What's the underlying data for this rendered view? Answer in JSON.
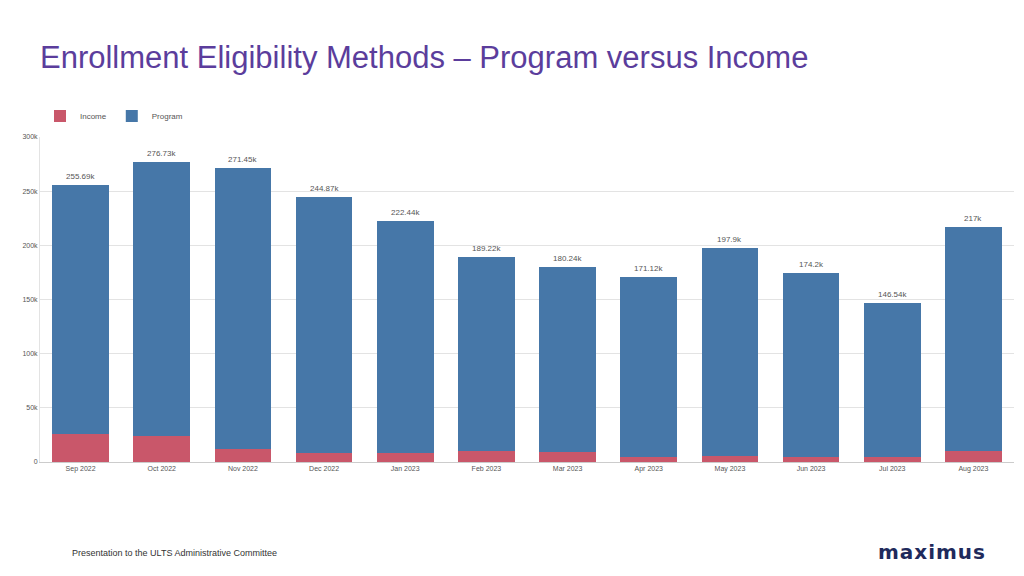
{
  "chart_data": {
    "type": "bar",
    "title": "Enrollment Eligibility Methods – Program versus Income",
    "categories": [
      "Sep 2022",
      "Oct 2022",
      "Nov 2022",
      "Dec 2022",
      "Jan 2023",
      "Feb 2023",
      "Mar 2023",
      "Apr 2023",
      "May 2023",
      "Jun 2023",
      "Jul 2023",
      "Aug 2023"
    ],
    "series": [
      {
        "name": "Income",
        "color": "#c9576a",
        "values": [
          26000,
          24000,
          12000,
          8000,
          8000,
          10000,
          9000,
          5000,
          6000,
          5000,
          5000,
          10000
        ]
      },
      {
        "name": "Program",
        "color": "#4677a8",
        "values": [
          229690,
          252730,
          259450,
          236870,
          214440,
          179220,
          171240,
          166120,
          191900,
          169200,
          141540,
          207000
        ]
      }
    ],
    "annotations": [
      {
        "category": "Sep 2022",
        "y": 255690,
        "text": "255.69k"
      },
      {
        "category": "Oct 2022",
        "y": 276730,
        "text": "276.73k"
      },
      {
        "category": "Nov 2022",
        "y": 271450,
        "text": "271.45k"
      },
      {
        "category": "Dec 2022",
        "y": 244870,
        "text": "244.87k"
      },
      {
        "category": "Jan 2023",
        "y": 222440,
        "text": "222.44k"
      },
      {
        "category": "Feb 2023",
        "y": 189220,
        "text": "189.22k"
      },
      {
        "category": "Mar 2023",
        "y": 180240,
        "text": "180.24k"
      },
      {
        "category": "Apr 2023",
        "y": 171120,
        "text": "171.12k"
      },
      {
        "category": "May 2023",
        "y": 197900,
        "text": "197.9k"
      },
      {
        "category": "Jun 2023",
        "y": 174200,
        "text": "174.2k"
      },
      {
        "category": "Jul 2023",
        "y": 146540,
        "text": "146.54k"
      },
      {
        "category": "Aug 2023",
        "y": 217000,
        "text": "217k"
      }
    ],
    "ylim": [
      0,
      300000
    ],
    "yticks": [
      0,
      {
        "value": 50000,
        "label": "50k"
      },
      {
        "value": 100000,
        "label": "100k"
      },
      {
        "value": 150000,
        "label": "150k"
      },
      {
        "value": 200000,
        "label": "200k"
      },
      {
        "value": 250000,
        "label": "250k"
      },
      {
        "value": 300000,
        "label": "300k"
      }
    ],
    "stacked": true,
    "grid": true,
    "legend": "top-left"
  },
  "footer": "Presentation to the ULTS Administrative Committee",
  "logo": "maximus"
}
